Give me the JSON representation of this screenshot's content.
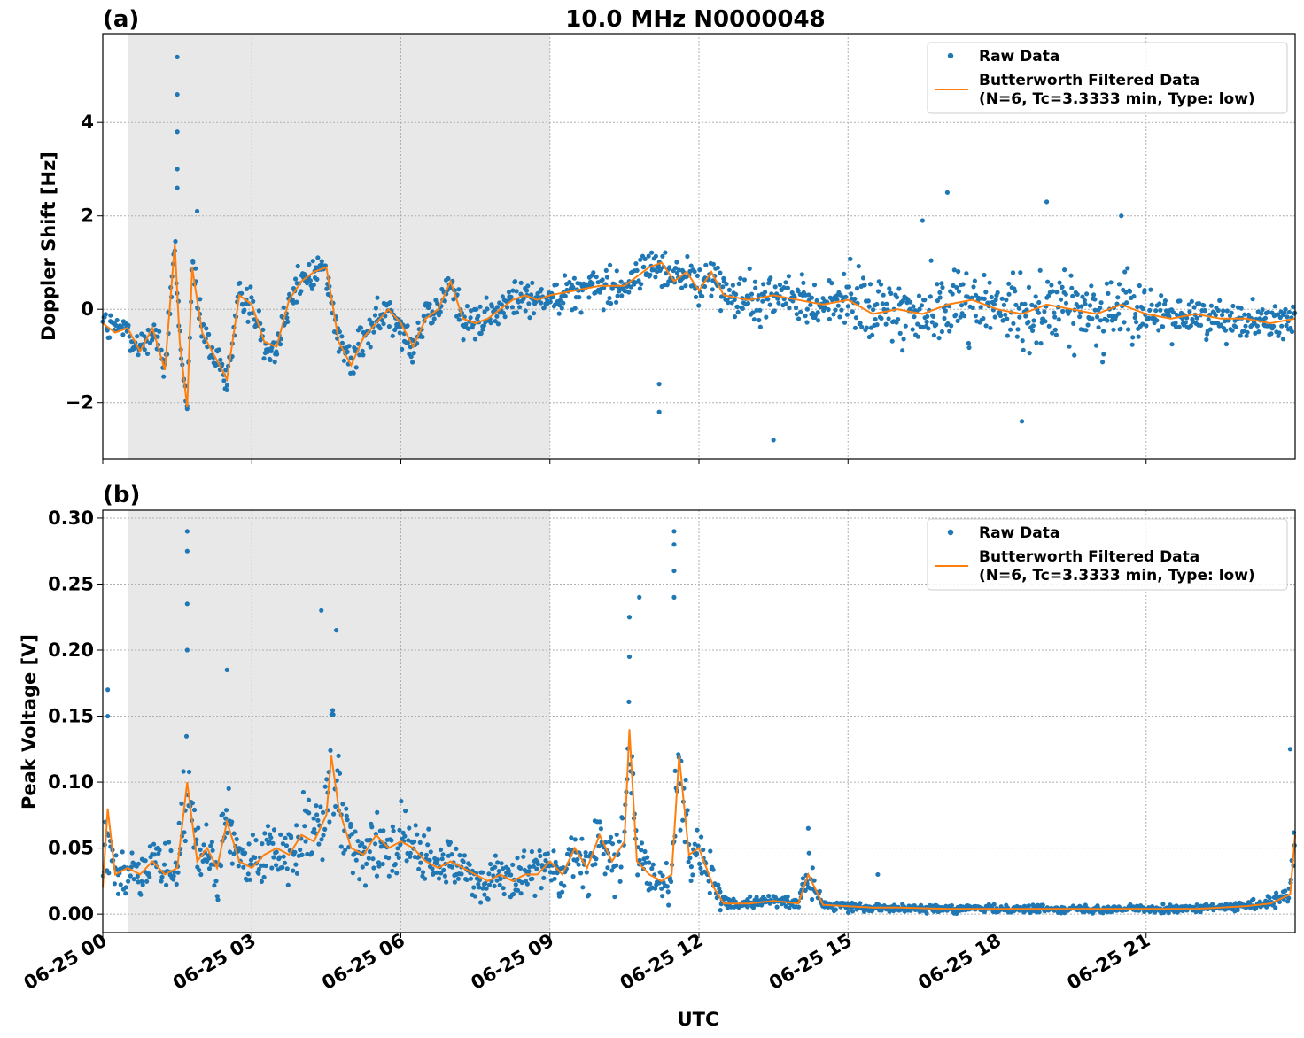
{
  "figure": {
    "title": "10.0 MHz N0000048",
    "xlabel": "UTC",
    "x_ticks": [
      "06-25 00",
      "06-25 03",
      "06-25 06",
      "06-25 09",
      "06-25 12",
      "06-25 15",
      "06-25 18",
      "06-25 21"
    ],
    "colors": {
      "raw": "#1f77b4",
      "filtered": "#ff7f0e",
      "shade": "#e8e8e8",
      "grid": "#b0b0b0"
    }
  },
  "chart_data": [
    {
      "panel_label": "(a)",
      "type": "scatter",
      "ylabel": "Doppler Shift [Hz]",
      "xlim": [
        0,
        24
      ],
      "ylim": [
        -3.2,
        5.9
      ],
      "y_ticks": [
        4,
        2,
        0,
        -2
      ],
      "y_tick_labels": [
        "4",
        "2",
        "0",
        "−2"
      ],
      "grid": true,
      "legend_position": "top-right",
      "shaded_interval_hours": [
        0.5,
        9.0
      ],
      "series": [
        {
          "name": "Raw Data",
          "style": "points",
          "x": [
            0,
            0.25,
            0.5,
            0.75,
            1.0,
            1.25,
            1.45,
            1.55,
            1.7,
            1.8,
            2.0,
            2.25,
            2.5,
            2.75,
            3.0,
            3.25,
            3.5,
            3.75,
            4.0,
            4.25,
            4.5,
            4.75,
            5.0,
            5.25,
            5.5,
            5.75,
            6.0,
            6.25,
            6.5,
            6.75,
            7.0,
            7.25,
            7.5,
            7.75,
            8.0,
            8.25,
            8.5,
            8.75,
            9.0,
            9.5,
            10.0,
            10.5,
            11.0,
            11.25,
            11.5,
            11.75,
            12.0,
            12.25,
            12.5,
            13.0,
            13.5,
            14.0,
            14.5,
            15.0,
            15.5,
            16.0,
            16.5,
            17.0,
            17.5,
            18.0,
            18.5,
            19.0,
            19.5,
            20.0,
            20.5,
            21.0,
            21.5,
            22.0,
            22.5,
            23.0,
            23.5,
            24.0
          ],
          "y": [
            -0.3,
            -0.5,
            -0.4,
            -0.9,
            -0.4,
            -1.3,
            1.4,
            -0.7,
            -2.1,
            0.9,
            -0.5,
            -1.0,
            -1.5,
            0.3,
            0.1,
            -0.7,
            -0.8,
            0.2,
            0.6,
            0.8,
            0.9,
            -0.7,
            -1.2,
            -0.6,
            -0.3,
            0.0,
            -0.3,
            -0.8,
            -0.2,
            0.0,
            0.6,
            -0.2,
            -0.3,
            -0.2,
            0.0,
            0.2,
            0.3,
            0.2,
            0.3,
            0.4,
            0.5,
            0.5,
            0.9,
            1.0,
            0.6,
            0.8,
            0.4,
            0.8,
            0.3,
            0.2,
            0.3,
            0.2,
            0.1,
            0.2,
            -0.1,
            0.0,
            -0.1,
            0.1,
            0.2,
            0.0,
            -0.1,
            0.1,
            0.0,
            -0.1,
            0.1,
            -0.1,
            -0.2,
            -0.1,
            -0.2,
            -0.2,
            -0.3,
            -0.2
          ]
        },
        {
          "name": "Butterworth Filtered Data\n(N=6, Tc=3.3333 min, Type: low)",
          "style": "line",
          "x": [
            0,
            0.25,
            0.5,
            0.75,
            1.0,
            1.25,
            1.45,
            1.55,
            1.7,
            1.8,
            2.0,
            2.25,
            2.5,
            2.75,
            3.0,
            3.25,
            3.5,
            3.75,
            4.0,
            4.25,
            4.5,
            4.75,
            5.0,
            5.25,
            5.5,
            5.75,
            6.0,
            6.25,
            6.5,
            6.75,
            7.0,
            7.25,
            7.5,
            7.75,
            8.0,
            8.25,
            8.5,
            8.75,
            9.0,
            9.5,
            10.0,
            10.5,
            11.0,
            11.25,
            11.5,
            11.75,
            12.0,
            12.25,
            12.5,
            13.0,
            13.5,
            14.0,
            14.5,
            15.0,
            15.5,
            16.0,
            16.5,
            17.0,
            17.5,
            18.0,
            18.5,
            19.0,
            19.5,
            20.0,
            20.5,
            21.0,
            21.5,
            22.0,
            22.5,
            23.0,
            23.5,
            24.0
          ],
          "y": [
            -0.3,
            -0.5,
            -0.4,
            -0.9,
            -0.4,
            -1.3,
            1.4,
            -0.7,
            -2.1,
            0.9,
            -0.5,
            -1.0,
            -1.5,
            0.3,
            0.1,
            -0.7,
            -0.8,
            0.2,
            0.6,
            0.8,
            0.9,
            -0.7,
            -1.2,
            -0.6,
            -0.3,
            0.0,
            -0.3,
            -0.8,
            -0.2,
            0.0,
            0.6,
            -0.2,
            -0.3,
            -0.2,
            0.0,
            0.2,
            0.3,
            0.2,
            0.3,
            0.4,
            0.5,
            0.5,
            0.9,
            1.0,
            0.6,
            0.8,
            0.4,
            0.8,
            0.3,
            0.2,
            0.3,
            0.2,
            0.1,
            0.2,
            -0.1,
            0.0,
            -0.1,
            0.1,
            0.2,
            0.0,
            -0.1,
            0.1,
            0.0,
            -0.1,
            0.1,
            -0.1,
            -0.2,
            -0.1,
            -0.2,
            -0.2,
            -0.3,
            -0.2
          ]
        }
      ]
    },
    {
      "panel_label": "(b)",
      "type": "scatter",
      "ylabel": "Peak Voltage [V]",
      "xlim": [
        0,
        24
      ],
      "ylim": [
        -0.014,
        0.306
      ],
      "y_ticks": [
        0.3,
        0.25,
        0.2,
        0.15,
        0.1,
        0.05,
        0.0
      ],
      "y_tick_labels": [
        "0.30",
        "0.25",
        "0.20",
        "0.15",
        "0.10",
        "0.05",
        "0.00"
      ],
      "grid": true,
      "legend_position": "top-right",
      "shaded_interval_hours": [
        0.5,
        9.0
      ],
      "series": [
        {
          "name": "Raw Data",
          "style": "points",
          "x": [
            0,
            0.1,
            0.25,
            0.5,
            0.75,
            1.0,
            1.25,
            1.5,
            1.7,
            1.9,
            2.1,
            2.3,
            2.5,
            2.75,
            3.0,
            3.25,
            3.5,
            3.75,
            4.0,
            4.25,
            4.5,
            4.6,
            4.75,
            5.0,
            5.25,
            5.5,
            5.75,
            6.0,
            6.25,
            6.5,
            6.75,
            7.0,
            7.25,
            7.5,
            7.75,
            8.0,
            8.25,
            8.5,
            8.75,
            9.0,
            9.25,
            9.5,
            9.75,
            10.0,
            10.25,
            10.5,
            10.6,
            10.75,
            11.0,
            11.25,
            11.45,
            11.6,
            11.8,
            12.0,
            12.3,
            12.5,
            13.0,
            13.5,
            14.0,
            14.2,
            14.5,
            15.0,
            15.5,
            16.0,
            17.0,
            18.0,
            19.0,
            20.0,
            21.0,
            22.0,
            22.5,
            23.0,
            23.5,
            23.9,
            24.0
          ],
          "y": [
            0.02,
            0.08,
            0.03,
            0.035,
            0.03,
            0.04,
            0.03,
            0.035,
            0.1,
            0.04,
            0.05,
            0.035,
            0.07,
            0.04,
            0.035,
            0.045,
            0.05,
            0.045,
            0.06,
            0.055,
            0.075,
            0.12,
            0.08,
            0.05,
            0.045,
            0.06,
            0.05,
            0.055,
            0.05,
            0.04,
            0.035,
            0.04,
            0.035,
            0.03,
            0.025,
            0.03,
            0.025,
            0.03,
            0.03,
            0.04,
            0.03,
            0.05,
            0.035,
            0.06,
            0.04,
            0.055,
            0.14,
            0.04,
            0.03,
            0.025,
            0.03,
            0.12,
            0.045,
            0.05,
            0.02,
            0.008,
            0.008,
            0.01,
            0.008,
            0.03,
            0.007,
            0.006,
            0.005,
            0.005,
            0.004,
            0.004,
            0.004,
            0.004,
            0.004,
            0.004,
            0.005,
            0.006,
            0.008,
            0.015,
            0.06
          ]
        },
        {
          "name": "Butterworth Filtered Data\n(N=6, Tc=3.3333 min, Type: low)",
          "style": "line",
          "x": [
            0,
            0.1,
            0.25,
            0.5,
            0.75,
            1.0,
            1.25,
            1.5,
            1.7,
            1.9,
            2.1,
            2.3,
            2.5,
            2.75,
            3.0,
            3.25,
            3.5,
            3.75,
            4.0,
            4.25,
            4.5,
            4.6,
            4.75,
            5.0,
            5.25,
            5.5,
            5.75,
            6.0,
            6.25,
            6.5,
            6.75,
            7.0,
            7.25,
            7.5,
            7.75,
            8.0,
            8.25,
            8.5,
            8.75,
            9.0,
            9.25,
            9.5,
            9.75,
            10.0,
            10.25,
            10.5,
            10.6,
            10.75,
            11.0,
            11.25,
            11.45,
            11.6,
            11.8,
            12.0,
            12.3,
            12.5,
            13.0,
            13.5,
            14.0,
            14.2,
            14.5,
            15.0,
            15.5,
            16.0,
            17.0,
            18.0,
            19.0,
            20.0,
            21.0,
            22.0,
            22.5,
            23.0,
            23.5,
            23.9,
            24.0
          ],
          "y": [
            0.02,
            0.08,
            0.03,
            0.035,
            0.03,
            0.04,
            0.03,
            0.035,
            0.1,
            0.04,
            0.05,
            0.035,
            0.07,
            0.04,
            0.035,
            0.045,
            0.05,
            0.045,
            0.06,
            0.055,
            0.075,
            0.12,
            0.08,
            0.05,
            0.045,
            0.06,
            0.05,
            0.055,
            0.05,
            0.04,
            0.035,
            0.04,
            0.035,
            0.03,
            0.025,
            0.03,
            0.025,
            0.03,
            0.03,
            0.04,
            0.03,
            0.05,
            0.035,
            0.06,
            0.04,
            0.055,
            0.14,
            0.04,
            0.03,
            0.025,
            0.03,
            0.12,
            0.045,
            0.05,
            0.02,
            0.008,
            0.008,
            0.01,
            0.008,
            0.03,
            0.007,
            0.006,
            0.005,
            0.005,
            0.004,
            0.004,
            0.004,
            0.004,
            0.004,
            0.004,
            0.005,
            0.006,
            0.008,
            0.015,
            0.06
          ]
        }
      ]
    }
  ]
}
